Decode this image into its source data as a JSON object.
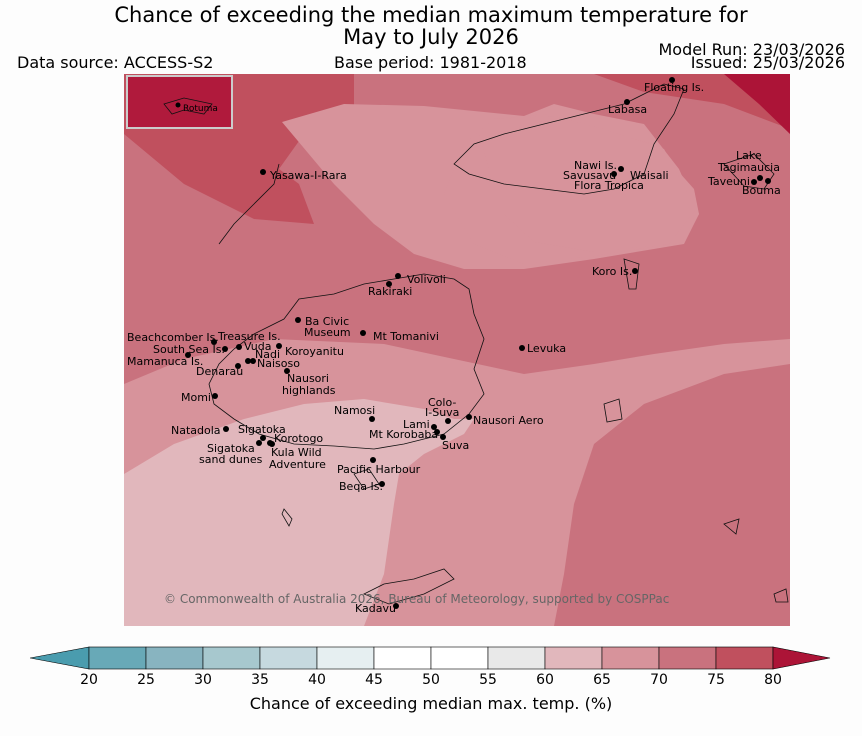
{
  "title_line1": "Chance of exceeding the median maximum temperature for",
  "title_line2": "May to July 2026",
  "data_source": "Data source: ACCESS-S2",
  "base_period": "Base period: 1981-2018",
  "model_run": "Model Run: 23/03/2026",
  "issued": "Issued: 25/03/2026",
  "inset_label": "Rotuma",
  "copyright": "© Commonwealth of Australia 2026, Bureau of Meteorology, supported by COSPPac",
  "colorbar": {
    "title": "Chance of exceeding median max. temp. (%)",
    "ticks": [
      "20",
      "25",
      "30",
      "35",
      "40",
      "45",
      "50",
      "55",
      "60",
      "65",
      "70",
      "75",
      "80"
    ],
    "colors": [
      "#68a9b7",
      "#88b4c0",
      "#a7c8ce",
      "#c6d9df",
      "#e6eff1",
      "#ffffff",
      "#ffffff",
      "#e9e9e9",
      "#e1b7bc",
      "#d7939b",
      "#c9727e",
      "#c0505e",
      "#b01a3c"
    ],
    "under_color": "#4a9cae",
    "over_color": "#ac1437"
  },
  "places": {
    "floating": "Floating Is.",
    "labasa": "Labasa",
    "yasawa": "Yasawa-I-Rara",
    "nawi": "Nawi Is.",
    "savusavu": "Savusavu",
    "waisali": "Waisali",
    "flora": "Flora Tropica",
    "lake": "Lake",
    "tagimaucia": "Tagimaucia",
    "taveuni": "Taveuni",
    "bouma": "Bouma",
    "koro": "Koro Is.",
    "volivoli": "Volivoli",
    "rakiraki": "Rakiraki",
    "beachcomber": "Beachcomber Is.",
    "treasure": "Treasure Is.",
    "bacivic1": "Ba Civic",
    "bacivic2": "Museum",
    "tomanivi": "Mt Tomanivi",
    "southsea": "South Sea Is.",
    "vuda": "Vuda",
    "koroyanitu": "Koroyanitu",
    "mamanuca": "Mamanuca Is.",
    "nadi": "Nadi",
    "naisoso": "Naisoso",
    "denarau": "Denarau",
    "nausori1": "Nausori",
    "nausori2": "highlands",
    "levuka": "Levuka",
    "momi": "Momi",
    "namosi": "Namosi",
    "colo1": "Colo-",
    "colo2": "I-Suva",
    "natadola": "Natadola",
    "sigatoka": "Sigatoka",
    "lami": "Lami",
    "nausoriaero": "Nausori Aero",
    "korobaba": "Mt Korobaba",
    "korotogo": "Korotogo",
    "suva": "Suva",
    "sigdunes1": "Sigatoka",
    "sigdunes2": "sand dunes",
    "kula1": "Kula Wild",
    "kula2": "Adventure",
    "pacific": "Pacific Harbour",
    "beqa": "Beqa Is.",
    "kadavu": "Kadavu"
  }
}
